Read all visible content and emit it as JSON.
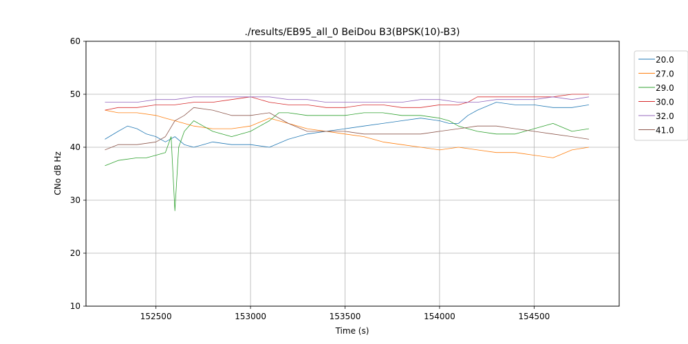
{
  "chart_data": {
    "type": "line",
    "title": "./results/EB95_all_0 BeiDou B3(BPSK(10)-B3)",
    "xlabel": "Time (s)",
    "ylabel": "CNo dB Hz",
    "xlim": [
      152130,
      154950
    ],
    "ylim": [
      10,
      60
    ],
    "xticks": [
      152500,
      153000,
      153500,
      154000,
      154500
    ],
    "xtick_labels": [
      "152500",
      "153000",
      "153500",
      "154000",
      "154500"
    ],
    "yticks": [
      10,
      20,
      30,
      40,
      50,
      60
    ],
    "ytick_labels": [
      "10",
      "20",
      "30",
      "40",
      "50",
      "60"
    ],
    "grid": true,
    "legend": "upper right, outside plot",
    "series": [
      {
        "name": "20.0",
        "color": "#1f77b4",
        "x": [
          152230,
          152300,
          152350,
          152400,
          152450,
          152500,
          152550,
          152600,
          152650,
          152700,
          152750,
          152800,
          152900,
          153000,
          153100,
          153200,
          153300,
          153400,
          153500,
          153600,
          153700,
          153800,
          153900,
          154000,
          154050,
          154100,
          154150,
          154200,
          154300,
          154400,
          154500,
          154600,
          154700,
          154790
        ],
        "y": [
          41.5,
          43.0,
          44.0,
          43.5,
          42.5,
          42.0,
          41.0,
          42.0,
          40.5,
          40.0,
          40.5,
          41.0,
          40.5,
          40.5,
          40.0,
          41.5,
          42.5,
          43.0,
          43.5,
          44.0,
          44.5,
          45.0,
          45.5,
          45.0,
          44.5,
          44.5,
          46.0,
          47.0,
          48.5,
          48.0,
          48.0,
          47.5,
          47.5,
          48.0
        ]
      },
      {
        "name": "27.0",
        "color": "#ff7f0e",
        "x": [
          152230,
          152300,
          152400,
          152500,
          152550,
          152600,
          152650,
          152700,
          152800,
          152900,
          153000,
          153100,
          153200,
          153300,
          153400,
          153500,
          153600,
          153700,
          153800,
          153900,
          154000,
          154100,
          154200,
          154300,
          154400,
          154500,
          154600,
          154700,
          154790
        ],
        "y": [
          47.0,
          46.5,
          46.5,
          46.0,
          45.5,
          45.0,
          44.5,
          44.0,
          43.5,
          43.5,
          44.0,
          45.5,
          44.5,
          43.5,
          43.0,
          42.5,
          42.0,
          41.0,
          40.5,
          40.0,
          39.5,
          40.0,
          39.5,
          39.0,
          39.0,
          38.5,
          38.0,
          39.5,
          40.0
        ]
      },
      {
        "name": "29.0",
        "color": "#2ca02c",
        "x": [
          152230,
          152300,
          152400,
          152450,
          152500,
          152550,
          152580,
          152600,
          152620,
          152650,
          152700,
          152750,
          152800,
          152900,
          153000,
          153050,
          153100,
          153150,
          153200,
          153300,
          153400,
          153500,
          153600,
          153700,
          153800,
          153900,
          154000,
          154050,
          154100,
          154150,
          154200,
          154300,
          154400,
          154500,
          154600,
          154700,
          154790
        ],
        "y": [
          36.5,
          37.5,
          38.0,
          38.0,
          38.5,
          39.0,
          42.0,
          28.0,
          40.0,
          43.0,
          45.0,
          44.0,
          43.0,
          42.0,
          43.0,
          44.0,
          45.0,
          46.5,
          46.5,
          46.0,
          46.0,
          46.0,
          46.5,
          46.5,
          46.0,
          46.0,
          45.5,
          45.0,
          44.0,
          43.5,
          43.0,
          42.5,
          42.5,
          43.5,
          44.5,
          43.0,
          43.5
        ]
      },
      {
        "name": "30.0",
        "color": "#d62728",
        "x": [
          152230,
          152300,
          152400,
          152500,
          152600,
          152700,
          152800,
          152900,
          153000,
          153100,
          153200,
          153300,
          153400,
          153500,
          153600,
          153700,
          153800,
          153900,
          154000,
          154100,
          154150,
          154200,
          154300,
          154400,
          154500,
          154600,
          154700,
          154790
        ],
        "y": [
          47.0,
          47.5,
          47.5,
          48.0,
          48.0,
          48.5,
          48.5,
          49.0,
          49.5,
          48.5,
          48.0,
          48.0,
          47.5,
          47.5,
          48.0,
          48.0,
          47.5,
          47.5,
          48.0,
          48.0,
          48.5,
          49.5,
          49.5,
          49.5,
          49.5,
          49.5,
          50.0,
          50.0
        ]
      },
      {
        "name": "32.0",
        "color": "#9467bd",
        "x": [
          152230,
          152300,
          152400,
          152500,
          152600,
          152700,
          152800,
          152900,
          153000,
          153100,
          153200,
          153300,
          153400,
          153500,
          153600,
          153700,
          153800,
          153900,
          154000,
          154100,
          154200,
          154300,
          154400,
          154500,
          154600,
          154700,
          154790
        ],
        "y": [
          48.5,
          48.5,
          48.5,
          49.0,
          49.0,
          49.5,
          49.5,
          49.5,
          49.5,
          49.5,
          49.0,
          49.0,
          48.5,
          48.5,
          48.5,
          48.5,
          48.5,
          49.0,
          49.0,
          48.5,
          48.5,
          49.0,
          49.0,
          49.0,
          49.5,
          49.0,
          49.5
        ]
      },
      {
        "name": "41.0",
        "color": "#8c564b",
        "x": [
          152230,
          152300,
          152400,
          152500,
          152550,
          152600,
          152650,
          152700,
          152800,
          152900,
          153000,
          153100,
          153200,
          153300,
          153400,
          153500,
          153600,
          153700,
          153800,
          153900,
          154000,
          154100,
          154200,
          154300,
          154400,
          154500,
          154600,
          154700,
          154790
        ],
        "y": [
          39.5,
          40.5,
          40.5,
          41.0,
          42.0,
          45.0,
          46.0,
          47.5,
          47.0,
          46.0,
          46.0,
          46.5,
          44.5,
          43.0,
          43.0,
          43.0,
          42.5,
          42.5,
          42.5,
          42.5,
          43.0,
          43.5,
          44.0,
          44.0,
          43.5,
          43.0,
          42.5,
          42.0,
          41.5
        ]
      }
    ]
  }
}
